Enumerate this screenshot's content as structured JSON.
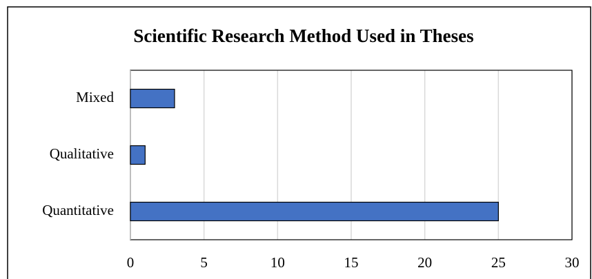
{
  "chart_data": {
    "type": "bar",
    "orientation": "horizontal",
    "title": "Scientific Research Method Used in Theses",
    "categories": [
      "Mixed",
      "Qualitative",
      "Quantitative"
    ],
    "values": [
      3,
      1,
      25
    ],
    "color": "#4472c4",
    "xlim": [
      0,
      30
    ],
    "xticks": [
      0,
      5,
      10,
      15,
      20,
      25,
      30
    ],
    "grid": true
  }
}
